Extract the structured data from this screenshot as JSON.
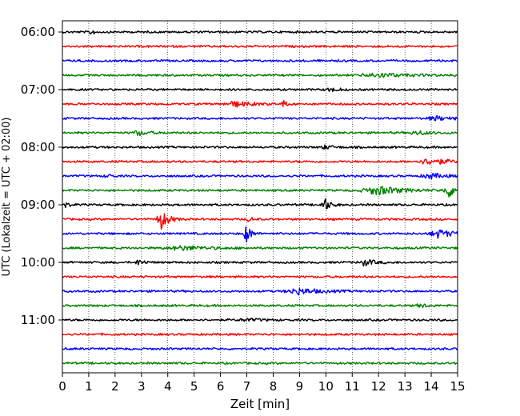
{
  "chart_data": {
    "type": "line",
    "title": "",
    "xlabel": "Zeit  [min]",
    "ylabel": "UTC (Lokalzeit = UTC + 02:00)",
    "xlim": [
      0,
      15
    ],
    "x_ticks": [
      0,
      1,
      2,
      3,
      4,
      5,
      6,
      7,
      8,
      9,
      10,
      11,
      12,
      13,
      14,
      15
    ],
    "x_tick_labels": [
      "0",
      "1",
      "2",
      "3",
      "4",
      "5",
      "6",
      "7",
      "8",
      "9",
      "10",
      "11",
      "12",
      "13",
      "14",
      "15"
    ],
    "y_tick_labels": [
      "06:00",
      "07:00",
      "08:00",
      "09:00",
      "10:00",
      "11:00"
    ],
    "y_tick_rows": [
      0,
      4,
      8,
      12,
      16,
      20
    ],
    "row_count": 24,
    "row_minutes": 15,
    "grid": {
      "x": true,
      "y": false,
      "style": "dotted"
    },
    "trace_colors": [
      "#000000",
      "#ff0000",
      "#0000ff",
      "#008000"
    ],
    "events": [
      {
        "row": 0,
        "minute": 1.1,
        "amp": 0.5,
        "dur": 0.15
      },
      {
        "row": 3,
        "minute": 12.0,
        "amp": 0.25,
        "dur": 1.5
      },
      {
        "row": 4,
        "minute": 10.2,
        "amp": 0.2,
        "dur": 0.5
      },
      {
        "row": 5,
        "minute": 6.6,
        "amp": 0.3,
        "dur": 1.0
      },
      {
        "row": 5,
        "minute": 8.4,
        "amp": 0.45,
        "dur": 0.15
      },
      {
        "row": 6,
        "minute": 14.2,
        "amp": 0.25,
        "dur": 0.8
      },
      {
        "row": 7,
        "minute": 2.9,
        "amp": 0.3,
        "dur": 0.5
      },
      {
        "row": 7,
        "minute": 13.5,
        "amp": 0.2,
        "dur": 0.8
      },
      {
        "row": 8,
        "minute": 10.0,
        "amp": 0.2,
        "dur": 0.5
      },
      {
        "row": 9,
        "minute": 14.0,
        "amp": 0.35,
        "dur": 1.2
      },
      {
        "row": 10,
        "minute": 1.7,
        "amp": 0.35,
        "dur": 0.2
      },
      {
        "row": 10,
        "minute": 14.0,
        "amp": 0.3,
        "dur": 0.8
      },
      {
        "row": 11,
        "minute": 12.0,
        "amp": 0.5,
        "dur": 1.4
      },
      {
        "row": 11,
        "minute": 14.7,
        "amp": 0.75,
        "dur": 0.5
      },
      {
        "row": 12,
        "minute": 0.1,
        "amp": 0.35,
        "dur": 0.2
      },
      {
        "row": 12,
        "minute": 9.95,
        "amp": 0.85,
        "dur": 0.3
      },
      {
        "row": 13,
        "minute": 3.75,
        "amp": 1.2,
        "dur": 0.4
      },
      {
        "row": 13,
        "minute": 7.1,
        "amp": 0.3,
        "dur": 0.2
      },
      {
        "row": 14,
        "minute": 7.0,
        "amp": 1.1,
        "dur": 0.25
      },
      {
        "row": 14,
        "minute": 14.3,
        "amp": 0.5,
        "dur": 0.8
      },
      {
        "row": 15,
        "minute": 4.6,
        "amp": 0.25,
        "dur": 1.5
      },
      {
        "row": 16,
        "minute": 2.9,
        "amp": 0.35,
        "dur": 0.3
      },
      {
        "row": 16,
        "minute": 11.5,
        "amp": 0.35,
        "dur": 0.6
      },
      {
        "row": 18,
        "minute": 9.0,
        "amp": 0.35,
        "dur": 1.2
      },
      {
        "row": 19,
        "minute": 13.6,
        "amp": 0.3,
        "dur": 0.3
      },
      {
        "row": 20,
        "minute": 7.0,
        "amp": 0.15,
        "dur": 0.8
      }
    ]
  }
}
